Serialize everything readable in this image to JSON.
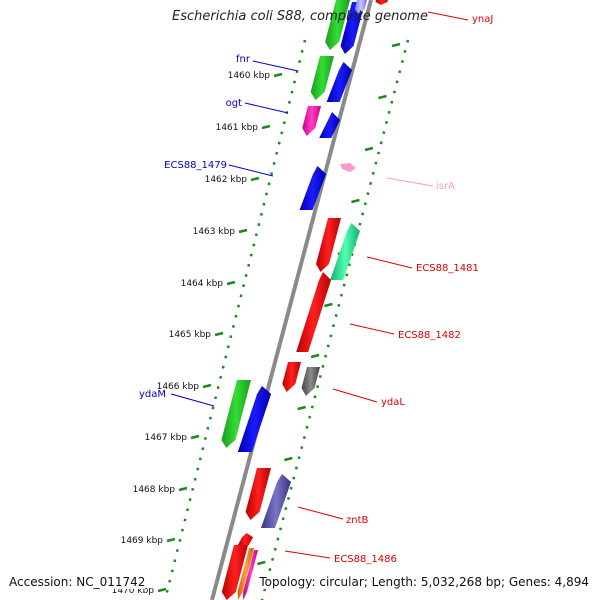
{
  "title": "Escherichia coli S88, complete genome",
  "footer": {
    "accession": "Accession: NC_011742",
    "topology": "Topology: circular; Length: 5,032,268 bp; Genes: 4,894"
  },
  "colors": {
    "backbone": "#8a8a8a",
    "dotted_track": "#1e8a1e",
    "label_blue": "#0000cc",
    "label_red": "#dd0000",
    "label_pink": "#ff99cc"
  },
  "ticks": [
    {
      "label": "1460 kbp"
    },
    {
      "label": "1461 kbp"
    },
    {
      "label": "1462 kbp"
    },
    {
      "label": "1463 kbp"
    },
    {
      "label": "1464 kbp"
    },
    {
      "label": "1465 kbp"
    },
    {
      "label": "1466 kbp"
    },
    {
      "label": "1467 kbp"
    },
    {
      "label": "1468 kbp"
    },
    {
      "label": "1469 kbp"
    },
    {
      "label": "1470 kbp"
    }
  ],
  "gene_labels": [
    {
      "text": "ynaJ",
      "color": "#dd0000"
    },
    {
      "text": "fnr",
      "color": "#0000cc"
    },
    {
      "text": "ogt",
      "color": "#0000cc"
    },
    {
      "text": "ECS88_1479",
      "color": "#0000cc"
    },
    {
      "text": "isrA",
      "color": "#ff99cc"
    },
    {
      "text": "ECS88_1481",
      "color": "#dd0000"
    },
    {
      "text": "ECS88_1482",
      "color": "#dd0000"
    },
    {
      "text": "ydaM",
      "color": "#0000cc"
    },
    {
      "text": "ydaL",
      "color": "#dd0000"
    },
    {
      "text": "zntB",
      "color": "#dd0000"
    },
    {
      "text": "ECS88_1486",
      "color": "#dd0000"
    }
  ]
}
